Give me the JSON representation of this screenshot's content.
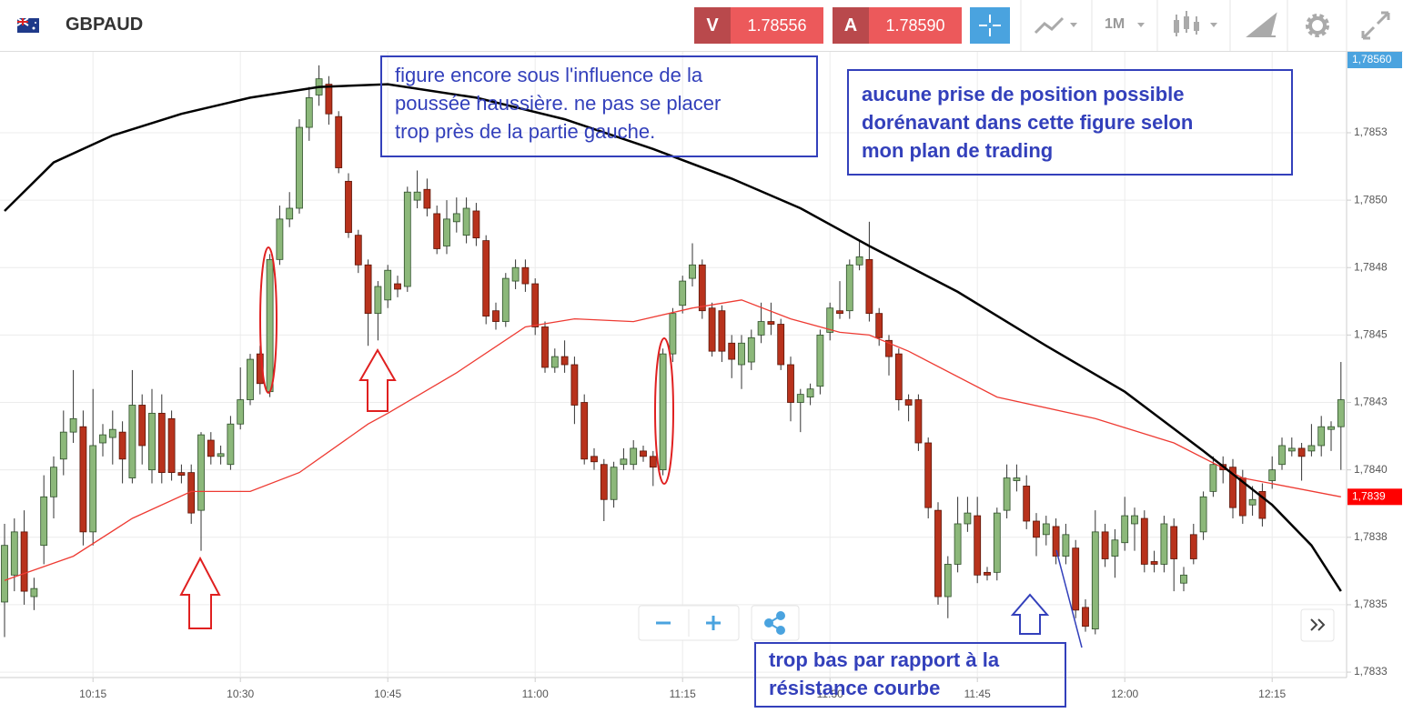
{
  "header": {
    "symbol": "GBPAUD",
    "sell_label": "V",
    "sell_price": "1.78556",
    "buy_label": "A",
    "buy_price": "1.78590",
    "timeframe": "1M"
  },
  "chart_data": {
    "type": "candlestick",
    "up_color": "#8cb87a",
    "down_color": "#b8321c",
    "grid": true,
    "ylim": [
      1.78323,
      1.78555
    ],
    "yticks": [
      {
        "value": 1.78525,
        "label": "1,7853"
      },
      {
        "value": 1.785,
        "label": "1,7850"
      },
      {
        "value": 1.78475,
        "label": "1,7848"
      },
      {
        "value": 1.7845,
        "label": "1,7845"
      },
      {
        "value": 1.78425,
        "label": "1,7843"
      },
      {
        "value": 1.784,
        "label": "1,7840"
      },
      {
        "value": 1.78375,
        "label": "1,7838"
      },
      {
        "value": 1.7835,
        "label": "1,7835"
      },
      {
        "value": 1.78325,
        "label": "1,7833"
      }
    ],
    "xticks": [
      "10:15",
      "10:30",
      "10:45",
      "11:00",
      "11:15",
      "11:30",
      "11:45",
      "12:00",
      "12:15"
    ],
    "x": [
      "10:06",
      "10:07",
      "10:08",
      "10:09",
      "10:10",
      "10:11",
      "10:12",
      "10:13",
      "10:14",
      "10:15",
      "10:16",
      "10:17",
      "10:18",
      "10:19",
      "10:20",
      "10:21",
      "10:22",
      "10:23",
      "10:24",
      "10:25",
      "10:26",
      "10:27",
      "10:28",
      "10:29",
      "10:30",
      "10:31",
      "10:32",
      "10:33",
      "10:34",
      "10:35",
      "10:36",
      "10:37",
      "10:38",
      "10:39",
      "10:40",
      "10:41",
      "10:42",
      "10:43",
      "10:44",
      "10:45",
      "10:46",
      "10:47",
      "10:48",
      "10:49",
      "10:50",
      "10:51",
      "10:52",
      "10:53",
      "10:54",
      "10:55",
      "10:56",
      "10:57",
      "10:58",
      "10:59",
      "11:00",
      "11:01",
      "11:02",
      "11:03",
      "11:04",
      "11:05",
      "11:06",
      "11:07",
      "11:08",
      "11:09",
      "11:10",
      "11:11",
      "11:12",
      "11:13",
      "11:14",
      "11:15",
      "11:16",
      "11:17",
      "11:18",
      "11:19",
      "11:20",
      "11:21",
      "11:22",
      "11:23",
      "11:24",
      "11:25",
      "11:26",
      "11:27",
      "11:28",
      "11:29",
      "11:30",
      "11:31",
      "11:32",
      "11:33",
      "11:34",
      "11:35",
      "11:36",
      "11:37",
      "11:38",
      "11:39",
      "11:40",
      "11:41",
      "11:42",
      "11:43",
      "11:44",
      "11:45",
      "11:46",
      "11:47",
      "11:48",
      "11:49",
      "11:50",
      "11:51",
      "11:52",
      "11:53",
      "11:54",
      "11:55",
      "11:56",
      "11:57",
      "11:58",
      "11:59",
      "12:00",
      "12:01",
      "12:02",
      "12:03",
      "12:04",
      "12:05",
      "12:06",
      "12:07",
      "12:08",
      "12:09",
      "12:10",
      "12:11",
      "12:12",
      "12:13",
      "12:14",
      "12:15",
      "12:16",
      "12:17",
      "12:18",
      "12:19",
      "12:20",
      "12:21",
      "12:22"
    ],
    "ohlc": [
      [
        1.78351,
        1.7838,
        1.78338,
        1.78372
      ],
      [
        1.78361,
        1.78382,
        1.78355,
        1.78377
      ],
      [
        1.78377,
        1.78385,
        1.7835,
        1.78355
      ],
      [
        1.78353,
        1.7836,
        1.78348,
        1.78356
      ],
      [
        1.78372,
        1.78398,
        1.78365,
        1.7839
      ],
      [
        1.7839,
        1.78405,
        1.78382,
        1.78401
      ],
      [
        1.78404,
        1.78422,
        1.78398,
        1.78414
      ],
      [
        1.78414,
        1.78437,
        1.7841,
        1.78419
      ],
      [
        1.78416,
        1.78422,
        1.78372,
        1.78377
      ],
      [
        1.78377,
        1.7843,
        1.78372,
        1.78409
      ],
      [
        1.7841,
        1.78417,
        1.78405,
        1.78413
      ],
      [
        1.78412,
        1.78422,
        1.78402,
        1.78415
      ],
      [
        1.78414,
        1.78418,
        1.78395,
        1.78404
      ],
      [
        1.78397,
        1.78437,
        1.78395,
        1.78424
      ],
      [
        1.78424,
        1.78428,
        1.78402,
        1.78409
      ],
      [
        1.784,
        1.7843,
        1.78395,
        1.78421
      ],
      [
        1.78421,
        1.78428,
        1.78395,
        1.78399
      ],
      [
        1.78419,
        1.78422,
        1.78396,
        1.78399
      ],
      [
        1.78399,
        1.78402,
        1.78395,
        1.78398
      ],
      [
        1.78399,
        1.78402,
        1.7838,
        1.78384
      ],
      [
        1.78385,
        1.78414,
        1.7837,
        1.78413
      ],
      [
        1.78411,
        1.78414,
        1.78402,
        1.78405
      ],
      [
        1.78405,
        1.78409,
        1.78402,
        1.78406
      ],
      [
        1.78402,
        1.7842,
        1.784,
        1.78417
      ],
      [
        1.78417,
        1.78438,
        1.78415,
        1.78426
      ],
      [
        1.78426,
        1.78443,
        1.78424,
        1.78441
      ],
      [
        1.78443,
        1.78446,
        1.78428,
        1.78432
      ],
      [
        1.78429,
        1.7848,
        1.78427,
        1.78478
      ],
      [
        1.78478,
        1.78498,
        1.78476,
        1.78493
      ],
      [
        1.78493,
        1.78503,
        1.7849,
        1.78497
      ],
      [
        1.78497,
        1.7853,
        1.78495,
        1.78527
      ],
      [
        1.78527,
        1.78542,
        1.78522,
        1.78538
      ],
      [
        1.78539,
        1.7855,
        1.78535,
        1.78545
      ],
      [
        1.78543,
        1.78546,
        1.78528,
        1.78532
      ],
      [
        1.78531,
        1.78533,
        1.7851,
        1.78512
      ],
      [
        1.78507,
        1.7851,
        1.78486,
        1.78488
      ],
      [
        1.78487,
        1.78489,
        1.78473,
        1.78476
      ],
      [
        1.78476,
        1.78478,
        1.78446,
        1.78458
      ],
      [
        1.78458,
        1.7847,
        1.78448,
        1.78468
      ],
      [
        1.78463,
        1.78476,
        1.7846,
        1.78474
      ],
      [
        1.78469,
        1.78472,
        1.78464,
        1.78467
      ],
      [
        1.78468,
        1.78505,
        1.78466,
        1.78503
      ],
      [
        1.785,
        1.78511,
        1.78497,
        1.78503
      ],
      [
        1.78504,
        1.78508,
        1.78494,
        1.78497
      ],
      [
        1.78495,
        1.78498,
        1.7848,
        1.78482
      ],
      [
        1.78483,
        1.785,
        1.7848,
        1.78493
      ],
      [
        1.78492,
        1.78501,
        1.78488,
        1.78495
      ],
      [
        1.78487,
        1.78501,
        1.78484,
        1.78497
      ],
      [
        1.78496,
        1.78499,
        1.78483,
        1.78486
      ],
      [
        1.78485,
        1.78487,
        1.78454,
        1.78457
      ],
      [
        1.78459,
        1.78462,
        1.78452,
        1.78455
      ],
      [
        1.78455,
        1.78473,
        1.78453,
        1.78471
      ],
      [
        1.7847,
        1.78478,
        1.78467,
        1.78475
      ],
      [
        1.78475,
        1.78478,
        1.78466,
        1.78469
      ],
      [
        1.78469,
        1.78471,
        1.7845,
        1.78453
      ],
      [
        1.78453,
        1.78455,
        1.78436,
        1.78438
      ],
      [
        1.78438,
        1.78445,
        1.78436,
        1.78442
      ],
      [
        1.78442,
        1.78448,
        1.78436,
        1.78439
      ],
      [
        1.78439,
        1.78442,
        1.78417,
        1.78424
      ],
      [
        1.78425,
        1.78428,
        1.78402,
        1.78404
      ],
      [
        1.78405,
        1.78408,
        1.784,
        1.78403
      ],
      [
        1.78402,
        1.78404,
        1.78381,
        1.78389
      ],
      [
        1.78389,
        1.78403,
        1.78386,
        1.78401
      ],
      [
        1.78402,
        1.78408,
        1.784,
        1.78404
      ],
      [
        1.78402,
        1.78411,
        1.784,
        1.78408
      ],
      [
        1.78407,
        1.78409,
        1.78403,
        1.78405
      ],
      [
        1.78405,
        1.78407,
        1.78394,
        1.78401
      ],
      [
        1.784,
        1.78445,
        1.78398,
        1.78443
      ],
      [
        1.78443,
        1.7846,
        1.7844,
        1.78458
      ],
      [
        1.78461,
        1.78472,
        1.78458,
        1.7847
      ],
      [
        1.78471,
        1.78484,
        1.78468,
        1.78476
      ],
      [
        1.78476,
        1.78478,
        1.78456,
        1.78459
      ],
      [
        1.7846,
        1.78462,
        1.78442,
        1.78444
      ],
      [
        1.78459,
        1.78461,
        1.7844,
        1.78444
      ],
      [
        1.78447,
        1.7845,
        1.78434,
        1.78441
      ],
      [
        1.78439,
        1.7845,
        1.7843,
        1.78447
      ],
      [
        1.7844,
        1.78452,
        1.78437,
        1.78449
      ],
      [
        1.7845,
        1.78462,
        1.78447,
        1.78455
      ],
      [
        1.78455,
        1.78462,
        1.7845,
        1.78454
      ],
      [
        1.78454,
        1.78456,
        1.78437,
        1.78439
      ],
      [
        1.78439,
        1.78442,
        1.78418,
        1.78425
      ],
      [
        1.78425,
        1.7843,
        1.78414,
        1.78428
      ],
      [
        1.78427,
        1.78432,
        1.78424,
        1.7843
      ],
      [
        1.78431,
        1.78452,
        1.78428,
        1.7845
      ],
      [
        1.78451,
        1.78462,
        1.78448,
        1.7846
      ],
      [
        1.78459,
        1.7847,
        1.78456,
        1.78458
      ],
      [
        1.78459,
        1.78478,
        1.78456,
        1.78476
      ],
      [
        1.78476,
        1.78485,
        1.78474,
        1.78479
      ],
      [
        1.78478,
        1.78492,
        1.78455,
        1.78458
      ],
      [
        1.78458,
        1.7846,
        1.78446,
        1.78449
      ],
      [
        1.78448,
        1.7845,
        1.78435,
        1.78442
      ],
      [
        1.78443,
        1.78445,
        1.78422,
        1.78426
      ],
      [
        1.78426,
        1.78428,
        1.78418,
        1.78424
      ],
      [
        1.78426,
        1.78428,
        1.78407,
        1.7841
      ],
      [
        1.7841,
        1.78412,
        1.78382,
        1.78386
      ],
      [
        1.78385,
        1.78388,
        1.7835,
        1.78353
      ],
      [
        1.78353,
        1.78368,
        1.78345,
        1.78365
      ],
      [
        1.78365,
        1.7839,
        1.78362,
        1.7838
      ],
      [
        1.7838,
        1.7839,
        1.78377,
        1.78384
      ],
      [
        1.78383,
        1.7839,
        1.78358,
        1.78361
      ],
      [
        1.78362,
        1.78364,
        1.78359,
        1.78361
      ],
      [
        1.78362,
        1.78386,
        1.78359,
        1.78384
      ],
      [
        1.78385,
        1.78402,
        1.78382,
        1.78397
      ],
      [
        1.78396,
        1.78402,
        1.78392,
        1.78397
      ],
      [
        1.78394,
        1.78398,
        1.78378,
        1.78381
      ],
      [
        1.78381,
        1.78384,
        1.78368,
        1.78375
      ],
      [
        1.78376,
        1.78383,
        1.78372,
        1.7838
      ],
      [
        1.78379,
        1.78382,
        1.78365,
        1.78368
      ],
      [
        1.78368,
        1.7838,
        1.78365,
        1.78376
      ],
      [
        1.78371,
        1.78374,
        1.78345,
        1.78348
      ],
      [
        1.78349,
        1.78352,
        1.7834,
        1.78342
      ],
      [
        1.78341,
        1.78385,
        1.78339,
        1.78377
      ],
      [
        1.78377,
        1.7838,
        1.78364,
        1.78367
      ],
      [
        1.78368,
        1.78378,
        1.7836,
        1.78374
      ],
      [
        1.78373,
        1.7839,
        1.7837,
        1.78383
      ],
      [
        1.7838,
        1.78386,
        1.7837,
        1.78383
      ],
      [
        1.78382,
        1.78385,
        1.78362,
        1.78365
      ],
      [
        1.78366,
        1.7837,
        1.78362,
        1.78365
      ],
      [
        1.78365,
        1.78383,
        1.78362,
        1.7838
      ],
      [
        1.78379,
        1.78382,
        1.78355,
        1.78367
      ],
      [
        1.78358,
        1.78364,
        1.78355,
        1.78361
      ],
      [
        1.78376,
        1.7838,
        1.78365,
        1.78367
      ],
      [
        1.78377,
        1.78392,
        1.78374,
        1.7839
      ],
      [
        1.78392,
        1.78405,
        1.7839,
        1.78402
      ],
      [
        1.78402,
        1.78405,
        1.78395,
        1.784
      ],
      [
        1.78401,
        1.78404,
        1.78382,
        1.78386
      ],
      [
        1.78397,
        1.784,
        1.7838,
        1.78383
      ],
      [
        1.78387,
        1.78394,
        1.78383,
        1.78389
      ],
      [
        1.78392,
        1.78395,
        1.78379,
        1.78382
      ],
      [
        1.78396,
        1.78405,
        1.78393,
        1.784
      ],
      [
        1.78402,
        1.78412,
        1.784,
        1.78409
      ],
      [
        1.78407,
        1.78412,
        1.78405,
        1.78408
      ],
      [
        1.78408,
        1.7841,
        1.78396,
        1.78405
      ],
      [
        1.78407,
        1.78417,
        1.78405,
        1.78409
      ],
      [
        1.78409,
        1.7842,
        1.78405,
        1.78416
      ],
      [
        1.78415,
        1.78418,
        1.78407,
        1.78416
      ],
      [
        1.78416,
        1.7844,
        1.784,
        1.78426
      ]
    ],
    "lines": [
      {
        "color": "#ee3b33",
        "x": [
          "10:06",
          "10:13",
          "10:19",
          "10:25",
          "10:31",
          "10:36",
          "10:43",
          "10:45",
          "10:52",
          "10:59",
          "11:04",
          "11:10",
          "11:16",
          "11:21",
          "11:26",
          "11:31",
          "11:34",
          "11:38",
          "11:47",
          "11:57",
          "12:05",
          "12:12",
          "12:22"
        ],
        "values": [
          1.78359,
          1.78368,
          1.78382,
          1.78392,
          1.78392,
          1.78399,
          1.78417,
          1.78421,
          1.78436,
          1.78453,
          1.78456,
          1.78455,
          1.7846,
          1.78463,
          1.78456,
          1.78451,
          1.7845,
          1.78444,
          1.78427,
          1.78419,
          1.7841,
          1.78397,
          1.7839
        ]
      },
      {
        "color": "#000000",
        "x": [
          "10:06",
          "10:11",
          "10:17",
          "10:24",
          "10:31",
          "10:38",
          "10:45",
          "10:54",
          "11:03",
          "11:12",
          "11:20",
          "11:27",
          "11:34",
          "11:43",
          "11:52",
          "12:00",
          "12:08",
          "12:15",
          "12:19",
          "12:22"
        ],
        "values": [
          1.78496,
          1.78514,
          1.78524,
          1.78532,
          1.78538,
          1.78542,
          1.78543,
          1.78538,
          1.7853,
          1.78519,
          1.78508,
          1.78497,
          1.78483,
          1.78466,
          1.78446,
          1.78429,
          1.78407,
          1.78387,
          1.78372,
          1.78355
        ]
      }
    ],
    "price_tags": [
      {
        "label": "1,78560",
        "color": "#4aa3df"
      },
      {
        "value": 1.7839,
        "label": "1,7839",
        "color": "#ff0000"
      }
    ]
  },
  "annotations": [
    {
      "color": "#3340bb",
      "lines": [
        "figure encore sous l'influence de la",
        "poussée haussière. ne pas se placer",
        "trop près de la partie gauche."
      ]
    },
    {
      "color": "#3340bb",
      "lines": [
        "aucune prise de position possible",
        "dorénavant dans cette figure selon",
        "mon plan de trading"
      ]
    },
    {
      "color": "#3340bb",
      "lines": [
        "trop bas par rapport à la",
        "résistance courbe"
      ]
    }
  ]
}
